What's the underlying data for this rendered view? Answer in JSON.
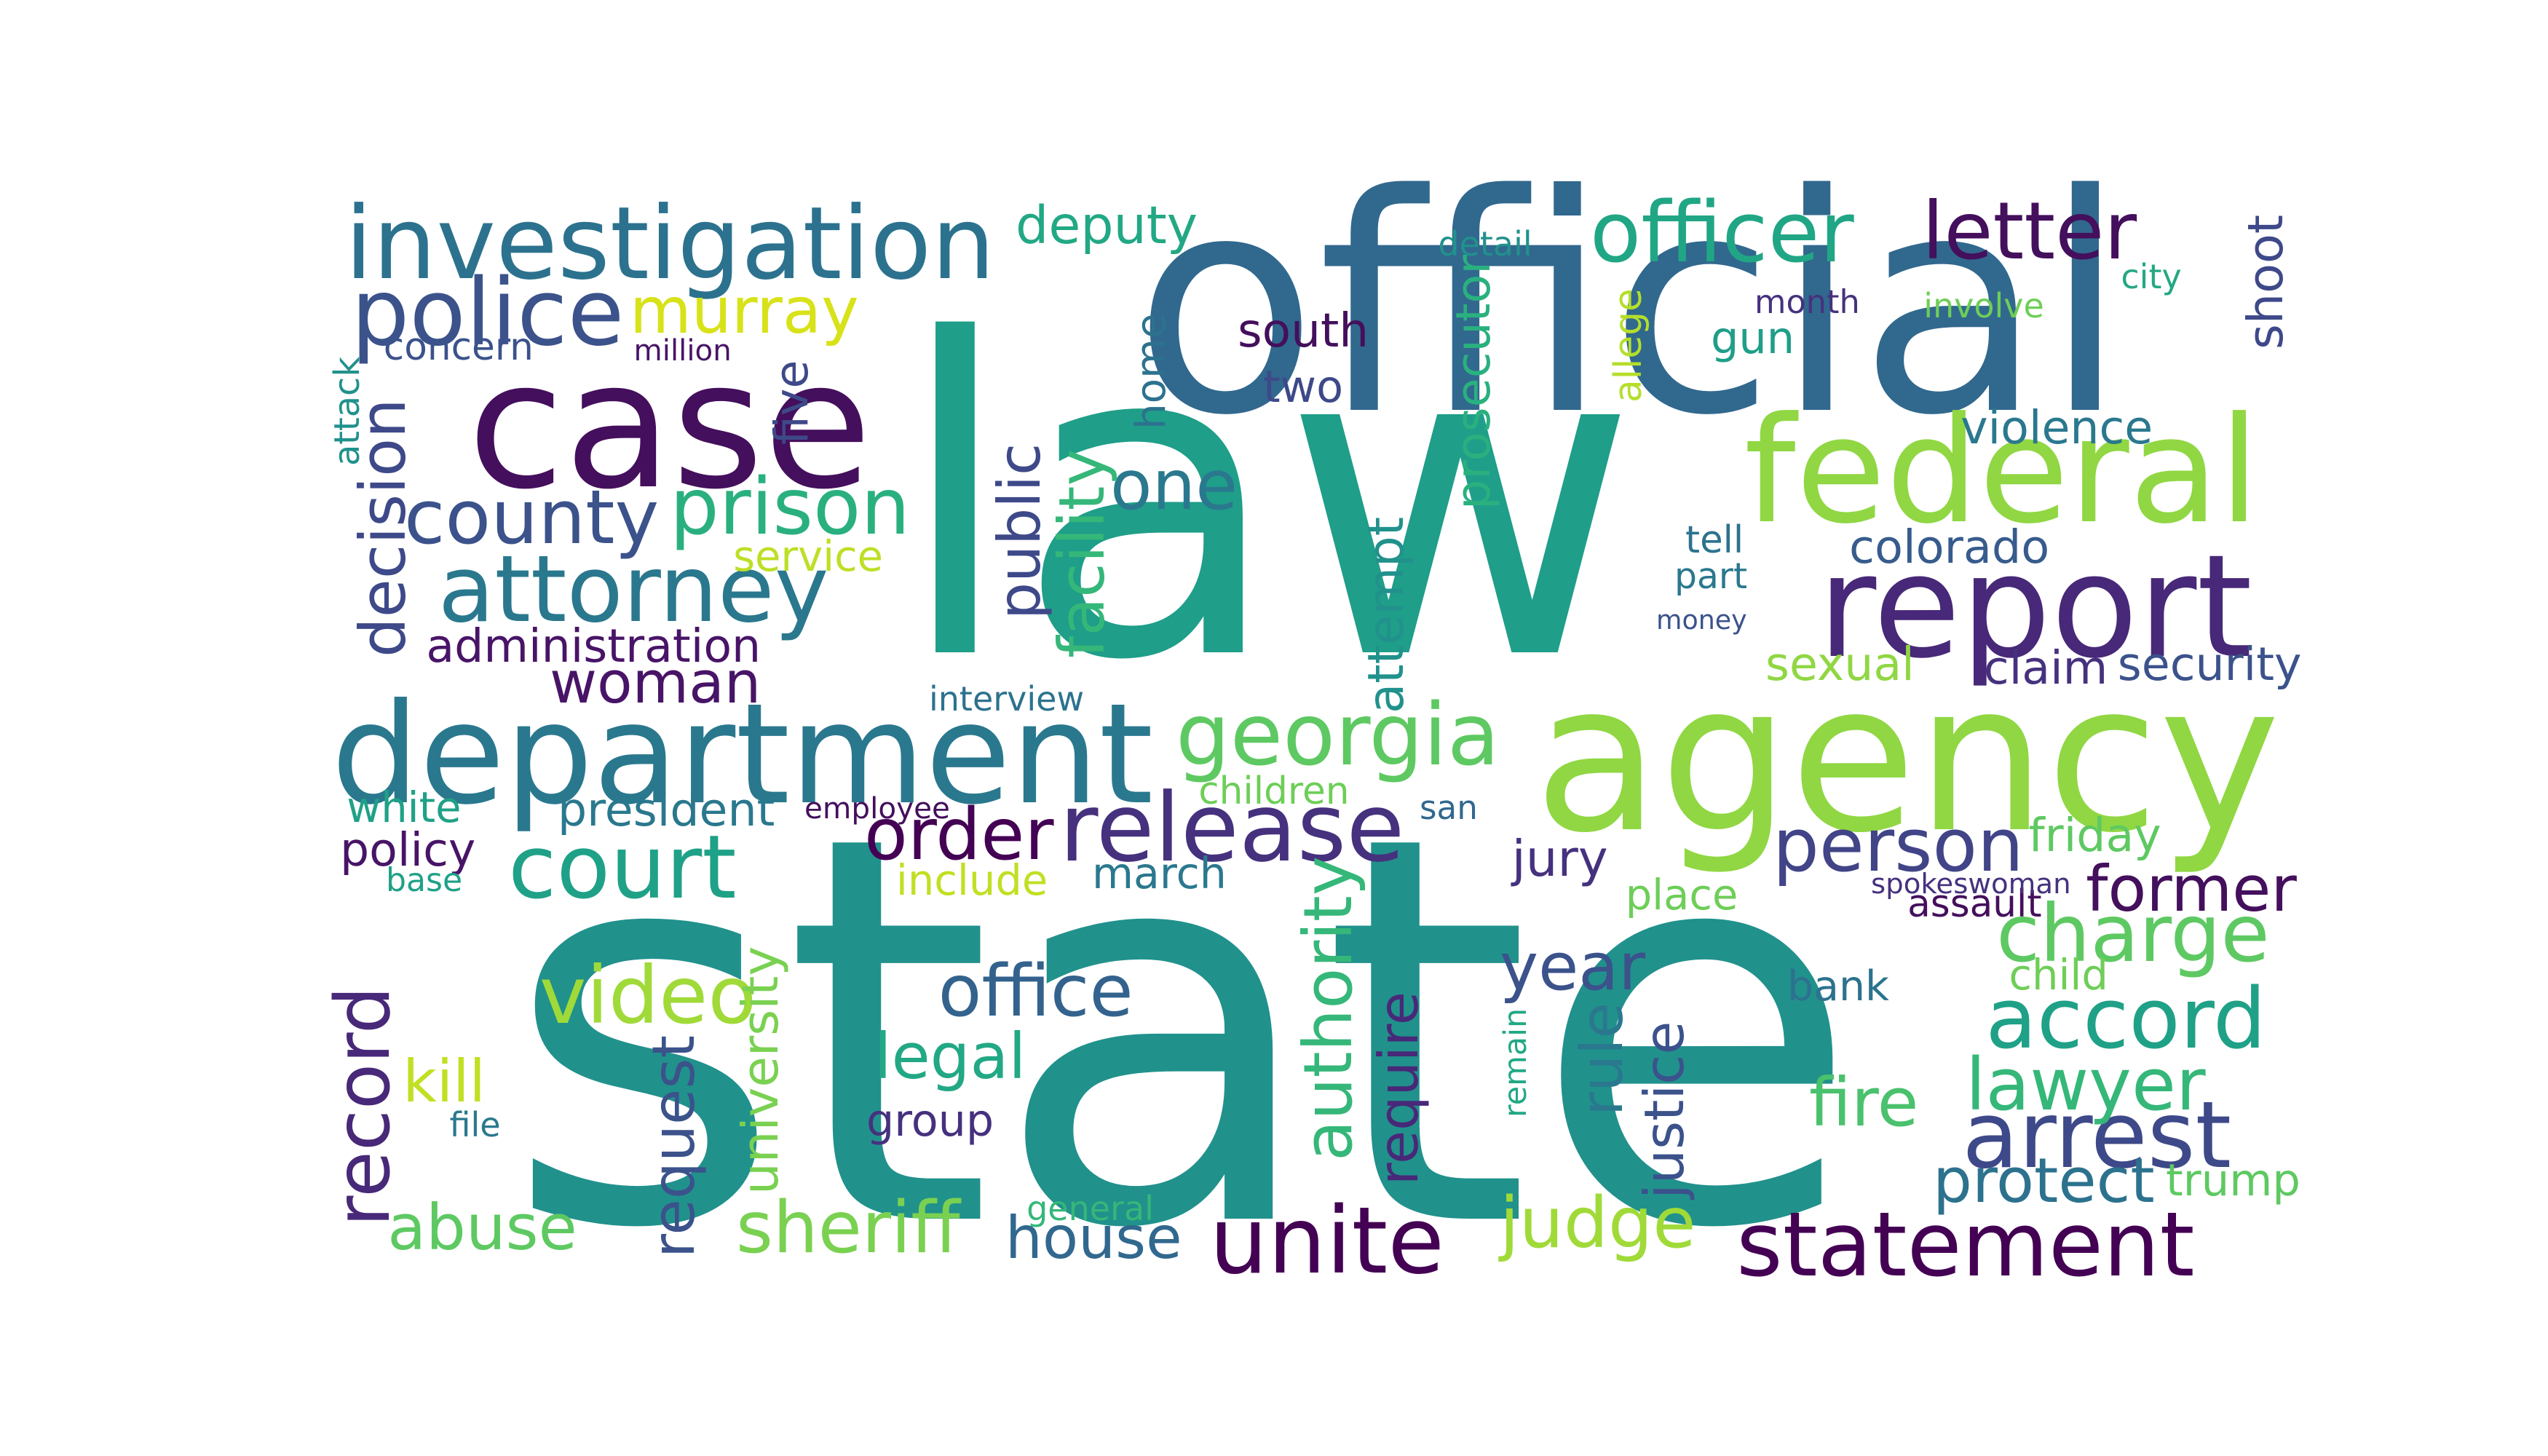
{
  "words": [
    {
      "text": "state",
      "color": "#21918c",
      "vertical": false
    },
    {
      "text": "law",
      "color": "#1f9e89",
      "vertical": false
    },
    {
      "text": "official",
      "color": "#31688e",
      "vertical": false
    },
    {
      "text": "agency",
      "color": "#90d743",
      "vertical": false
    },
    {
      "text": "case",
      "color": "#440f5c",
      "vertical": false
    },
    {
      "text": "department",
      "color": "#2a788e",
      "vertical": false
    },
    {
      "text": "federal",
      "color": "#90d743",
      "vertical": false
    },
    {
      "text": "report",
      "color": "#482878",
      "vertical": false
    },
    {
      "text": "investigation",
      "color": "#2c728e",
      "vertical": false
    },
    {
      "text": "release",
      "color": "#46317e",
      "vertical": false
    },
    {
      "text": "statement",
      "color": "#440154",
      "vertical": false
    },
    {
      "text": "police",
      "color": "#3b528b",
      "vertical": false
    },
    {
      "text": "attorney",
      "color": "#2a788e",
      "vertical": false
    },
    {
      "text": "officer",
      "color": "#21a685",
      "vertical": false
    },
    {
      "text": "georgia",
      "color": "#5ec962",
      "vertical": false
    },
    {
      "text": "court",
      "color": "#1fa187",
      "vertical": false
    },
    {
      "text": "arrest",
      "color": "#3e4989",
      "vertical": false
    },
    {
      "text": "accord",
      "color": "#1fa187",
      "vertical": false
    },
    {
      "text": "unite",
      "color": "#440154",
      "vertical": false
    },
    {
      "text": "county",
      "color": "#3b528b",
      "vertical": false
    },
    {
      "text": "prison",
      "color": "#2ab07f",
      "vertical": false
    },
    {
      "text": "letter",
      "color": "#440f5c",
      "vertical": false
    },
    {
      "text": "person",
      "color": "#414487",
      "vertical": false
    },
    {
      "text": "charge",
      "color": "#5ec962",
      "vertical": false
    },
    {
      "text": "video",
      "color": "#a0da39",
      "vertical": false
    },
    {
      "text": "office",
      "color": "#33638d",
      "vertical": false
    },
    {
      "text": "woman",
      "color": "#481467",
      "vertical": false
    },
    {
      "text": "lawyer",
      "color": "#35b779",
      "vertical": false
    },
    {
      "text": "murray",
      "color": "#d8e219",
      "vertical": false
    },
    {
      "text": "sheriff",
      "color": "#7ad151",
      "vertical": false
    },
    {
      "text": "judge",
      "color": "#a0da39",
      "vertical": false
    },
    {
      "text": "record",
      "color": "#482878",
      "vertical": true
    },
    {
      "text": "authority",
      "color": "#35b779",
      "vertical": true
    },
    {
      "text": "abuse",
      "color": "#5ec962",
      "vertical": false
    },
    {
      "text": "order",
      "color": "#440154",
      "vertical": false
    },
    {
      "text": "legal",
      "color": "#22a884",
      "vertical": false
    },
    {
      "text": "former",
      "color": "#440f5c",
      "vertical": false
    },
    {
      "text": "house",
      "color": "#31688e",
      "vertical": false
    },
    {
      "text": "decision",
      "color": "#3e4989",
      "vertical": true
    },
    {
      "text": "public",
      "color": "#3e4989",
      "vertical": true
    },
    {
      "text": "colorado",
      "color": "#375b8d",
      "vertical": false
    },
    {
      "text": "deputy",
      "color": "#22a884",
      "vertical": false
    },
    {
      "text": "year",
      "color": "#3b528b",
      "vertical": false
    },
    {
      "text": "rule",
      "color": "#2a788e",
      "vertical": true
    },
    {
      "text": "request",
      "color": "#3b528b",
      "vertical": true
    },
    {
      "text": "require",
      "color": "#482878",
      "vertical": true
    },
    {
      "text": "fire",
      "color": "#4ac16d",
      "vertical": false
    },
    {
      "text": "one",
      "color": "#2a788e",
      "vertical": false
    },
    {
      "text": "protect",
      "color": "#2c728e",
      "vertical": false
    },
    {
      "text": "facility",
      "color": "#35b779",
      "vertical": true
    },
    {
      "text": "kill",
      "color": "#c2df23",
      "vertical": false
    },
    {
      "text": "administration",
      "color": "#481467",
      "vertical": false
    },
    {
      "text": "trump",
      "color": "#5ec962",
      "vertical": false
    },
    {
      "text": "justice",
      "color": "#3b528b",
      "vertical": true
    },
    {
      "text": "university",
      "color": "#7ad151",
      "vertical": true
    },
    {
      "text": "shoot",
      "color": "#3e4989",
      "vertical": true
    },
    {
      "text": "south",
      "color": "#440f5c",
      "vertical": false
    },
    {
      "text": "prosecutor",
      "color": "#2ab07f",
      "vertical": true
    },
    {
      "text": "violence",
      "color": "#2a788e",
      "vertical": false
    },
    {
      "text": "group",
      "color": "#46317e",
      "vertical": false
    },
    {
      "text": "jury",
      "color": "#46317e",
      "vertical": false
    },
    {
      "text": "attempt",
      "color": "#21918c",
      "vertical": true
    },
    {
      "text": "march",
      "color": "#2a788e",
      "vertical": false
    },
    {
      "text": "bank",
      "color": "#2c728e",
      "vertical": false
    },
    {
      "text": "home",
      "color": "#2c728e",
      "vertical": true
    },
    {
      "text": "gun",
      "color": "#1f9e89",
      "vertical": false
    },
    {
      "text": "money",
      "color": "#3b528b",
      "vertical": false
    },
    {
      "text": "two",
      "color": "#3e4989",
      "vertical": false
    },
    {
      "text": "security",
      "color": "#3b528b",
      "vertical": false
    },
    {
      "text": "claim",
      "color": "#46317e",
      "vertical": false
    },
    {
      "text": "sexual",
      "color": "#90d743",
      "vertical": false
    },
    {
      "text": "tell",
      "color": "#2c728e",
      "vertical": false
    },
    {
      "text": "friday",
      "color": "#5ec962",
      "vertical": false
    },
    {
      "text": "part",
      "color": "#2a788e",
      "vertical": false
    },
    {
      "text": "white",
      "color": "#1fa187",
      "vertical": false
    },
    {
      "text": "policy",
      "color": "#481467",
      "vertical": false
    },
    {
      "text": "president",
      "color": "#2a788e",
      "vertical": false
    },
    {
      "text": "children",
      "color": "#6ece58",
      "vertical": false
    },
    {
      "text": "place",
      "color": "#6ece58",
      "vertical": false
    },
    {
      "text": "include",
      "color": "#c2df23",
      "vertical": false
    },
    {
      "text": "child",
      "color": "#6ece58",
      "vertical": false
    },
    {
      "text": "service",
      "color": "#bddf26",
      "vertical": false
    },
    {
      "text": "five",
      "color": "#3e4989",
      "vertical": true
    },
    {
      "text": "concern",
      "color": "#3b528b",
      "vertical": false
    },
    {
      "text": "interview",
      "color": "#2c728e",
      "vertical": false
    },
    {
      "text": "assault",
      "color": "#440f5c",
      "vertical": false
    },
    {
      "text": "spokeswoman",
      "color": "#46317e",
      "vertical": false
    },
    {
      "text": "employee",
      "color": "#440f5c",
      "vertical": false
    },
    {
      "text": "general",
      "color": "#35b779",
      "vertical": false
    },
    {
      "text": "million",
      "color": "#481467",
      "vertical": false
    },
    {
      "text": "month",
      "color": "#46317e",
      "vertical": false
    },
    {
      "text": "involve",
      "color": "#6ece58",
      "vertical": false
    },
    {
      "text": "city",
      "color": "#22a884",
      "vertical": false
    },
    {
      "text": "detail",
      "color": "#21918c",
      "vertical": false
    },
    {
      "text": "san",
      "color": "#31688e",
      "vertical": false
    },
    {
      "text": "base",
      "color": "#1fa187",
      "vertical": false
    },
    {
      "text": "file",
      "color": "#2a788e",
      "vertical": false
    },
    {
      "text": "attack",
      "color": "#21918c",
      "vertical": true
    },
    {
      "text": "allege",
      "color": "#b5de2b",
      "vertical": true
    },
    {
      "text": "remain",
      "color": "#22a884",
      "vertical": true
    }
  ]
}
